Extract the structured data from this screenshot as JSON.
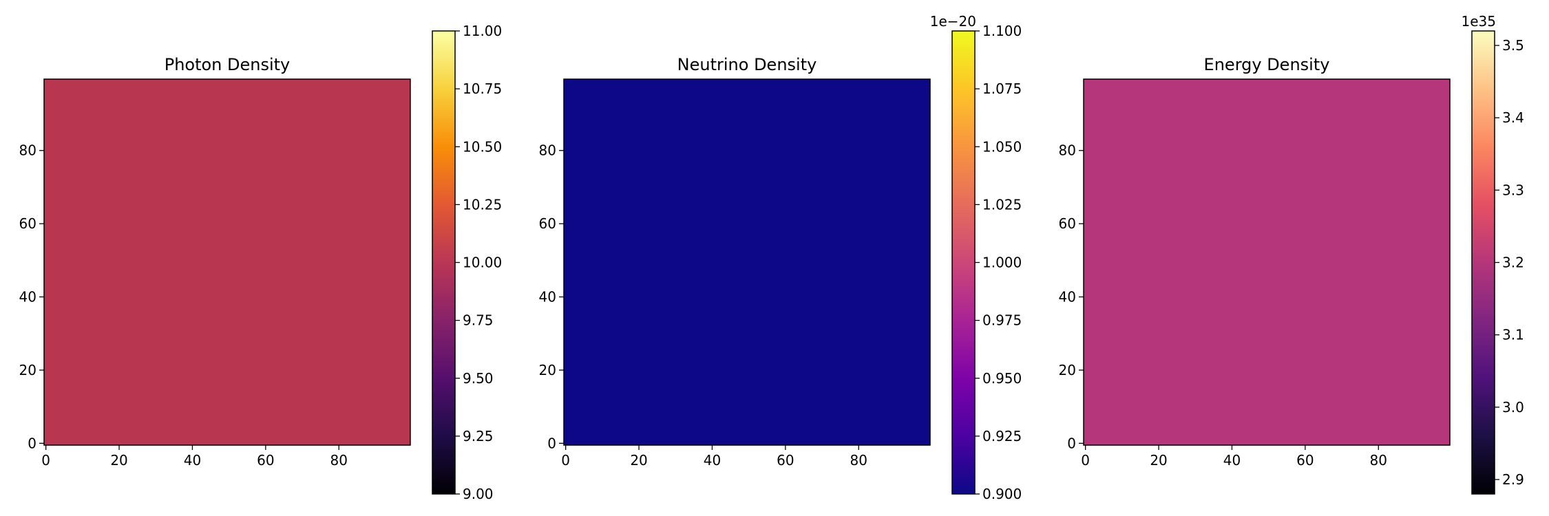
{
  "chart_data": [
    {
      "type": "heatmap",
      "title": "Photon Density",
      "xlabel": "",
      "ylabel": "",
      "grid_size": [
        100,
        100
      ],
      "xlim": [
        -0.5,
        99.5
      ],
      "ylim": [
        -0.5,
        99.5
      ],
      "x_ticks": [
        0,
        20,
        40,
        60,
        80
      ],
      "y_ticks": [
        0,
        20,
        40,
        60,
        80
      ],
      "x_tick_labels": [
        "0",
        "20",
        "40",
        "60",
        "80"
      ],
      "y_tick_labels": [
        "0",
        "20",
        "40",
        "60",
        "80"
      ],
      "value": 10.0,
      "colormap": "inferno",
      "fill_color": "#b93651",
      "colorbar": {
        "range": [
          9.0,
          11.0
        ],
        "ticks": [
          9.0,
          9.25,
          9.5,
          9.75,
          10.0,
          10.25,
          10.5,
          10.75,
          11.0
        ],
        "tick_labels": [
          "9.00",
          "9.25",
          "9.50",
          "9.75",
          "10.00",
          "10.25",
          "10.50",
          "10.75",
          "11.00"
        ],
        "multiplier": ""
      }
    },
    {
      "type": "heatmap",
      "title": "Neutrino Density",
      "xlabel": "",
      "ylabel": "",
      "grid_size": [
        100,
        100
      ],
      "xlim": [
        -0.5,
        99.5
      ],
      "ylim": [
        -0.5,
        99.5
      ],
      "x_ticks": [
        0,
        20,
        40,
        60,
        80
      ],
      "y_ticks": [
        0,
        20,
        40,
        60,
        80
      ],
      "x_tick_labels": [
        "0",
        "20",
        "40",
        "60",
        "80"
      ],
      "y_tick_labels": [
        "0",
        "20",
        "40",
        "60",
        "80"
      ],
      "value": 0.9,
      "colormap": "plasma",
      "fill_color": "#0d0887",
      "colorbar": {
        "range": [
          0.9,
          1.1
        ],
        "ticks": [
          0.9,
          0.925,
          0.95,
          0.975,
          1.0,
          1.025,
          1.05,
          1.075,
          1.1
        ],
        "tick_labels": [
          "0.900",
          "0.925",
          "0.950",
          "0.975",
          "1.000",
          "1.025",
          "1.050",
          "1.075",
          "1.100"
        ],
        "multiplier": "1e−20"
      }
    },
    {
      "type": "heatmap",
      "title": "Energy Density",
      "xlabel": "",
      "ylabel": "",
      "grid_size": [
        100,
        100
      ],
      "xlim": [
        -0.5,
        99.5
      ],
      "ylim": [
        -0.5,
        99.5
      ],
      "x_ticks": [
        0,
        20,
        40,
        60,
        80
      ],
      "y_ticks": [
        0,
        20,
        40,
        60,
        80
      ],
      "x_tick_labels": [
        "0",
        "20",
        "40",
        "60",
        "80"
      ],
      "y_tick_labels": [
        "0",
        "20",
        "40",
        "60",
        "80"
      ],
      "value": 3.2,
      "colormap": "magma",
      "fill_color": "#b5367a",
      "colorbar": {
        "range": [
          2.88,
          3.52
        ],
        "ticks": [
          2.9,
          3.0,
          3.1,
          3.2,
          3.3,
          3.4,
          3.5
        ],
        "tick_labels": [
          "2.9",
          "3.0",
          "3.1",
          "3.2",
          "3.3",
          "3.4",
          "3.5"
        ],
        "multiplier": "1e35"
      }
    }
  ],
  "colormaps": {
    "inferno": [
      "#000004",
      "#1f0c48",
      "#550f6d",
      "#88226a",
      "#ba3655",
      "#e35933",
      "#f98e09",
      "#f7d13d",
      "#fcffa4"
    ],
    "plasma": [
      "#0d0887",
      "#4c02a1",
      "#7e03a8",
      "#a92395",
      "#cc4778",
      "#e66c5c",
      "#f89540",
      "#fdc527",
      "#f0f921"
    ],
    "magma": [
      "#000004",
      "#1c1044",
      "#4f127b",
      "#812581",
      "#b5367a",
      "#e55064",
      "#fb8761",
      "#fec287",
      "#fcfdbf"
    ]
  }
}
